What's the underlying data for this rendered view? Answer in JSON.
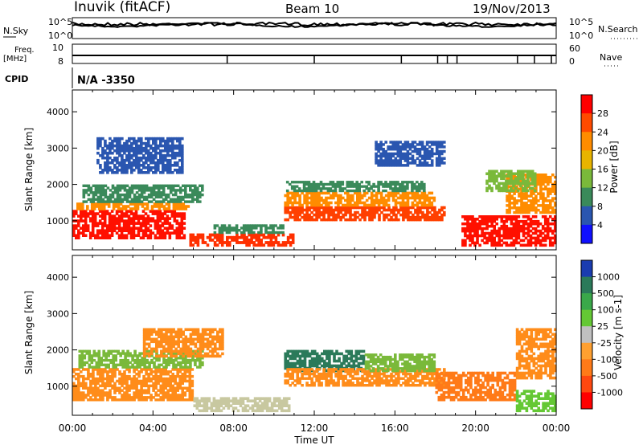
{
  "header": {
    "station": "Inuvik (fitACF)",
    "beam": "Beam 10",
    "date": "19/Nov/2013"
  },
  "noise_panel": {
    "left_label": "N.Sky",
    "right_label": "N.Search",
    "left_ticks": [
      "10^5",
      "10^0"
    ],
    "right_ticks": [
      "10^5",
      "10^0"
    ]
  },
  "freq_panel": {
    "left_label_line1": "Freq.",
    "left_label_line2": "[MHz]",
    "left_ticks": [
      "10",
      "8"
    ],
    "right_label": "Nave",
    "right_ticks": [
      "60",
      "0"
    ]
  },
  "cpid": {
    "label": "CPID",
    "value": "N/A -3350"
  },
  "chart_data": [
    {
      "type": "heatmap",
      "name": "power",
      "ylabel": "Slant Range [km]",
      "xlabel": "Time UT",
      "yticks": [
        1000,
        2000,
        3000,
        4000
      ],
      "ylim": [
        200,
        4600
      ],
      "xticks": [
        "00:00",
        "04:00",
        "08:00",
        "12:00",
        "16:00",
        "20:00",
        "00:00"
      ],
      "colorbar": {
        "label": "Power [dB]",
        "ticks": [
          "28",
          "24",
          "20",
          "16",
          "12",
          "8",
          "4"
        ],
        "colors": [
          "#ff0000",
          "#ff4a00",
          "#ff8c00",
          "#e8b400",
          "#7ab93a",
          "#3a8a5a",
          "#2a56b0",
          "#1010ff"
        ]
      },
      "bands": [
        {
          "t0": 0.0,
          "t1": 5.6,
          "r0": 500,
          "r1": 1300,
          "color": "#ff1000"
        },
        {
          "t0": 0.2,
          "t1": 5.8,
          "r0": 1300,
          "r1": 1500,
          "color": "#ff8c00"
        },
        {
          "t0": 0.5,
          "t1": 6.5,
          "r0": 1500,
          "r1": 2000,
          "color": "#3a8a5a"
        },
        {
          "t0": 1.2,
          "t1": 5.5,
          "r0": 2300,
          "r1": 3300,
          "color": "#2a56b0"
        },
        {
          "t0": 5.8,
          "t1": 11.0,
          "r0": 300,
          "r1": 650,
          "color": "#ff3000"
        },
        {
          "t0": 7.0,
          "t1": 10.5,
          "r0": 650,
          "r1": 900,
          "color": "#3a8a5a"
        },
        {
          "t0": 10.5,
          "t1": 18.5,
          "r0": 1000,
          "r1": 1400,
          "color": "#ff4000"
        },
        {
          "t0": 10.5,
          "t1": 18.0,
          "r0": 1400,
          "r1": 1800,
          "color": "#ff8c00"
        },
        {
          "t0": 10.6,
          "t1": 17.5,
          "r0": 1800,
          "r1": 2100,
          "color": "#3a8a5a"
        },
        {
          "t0": 15.0,
          "t1": 18.5,
          "r0": 2500,
          "r1": 3200,
          "color": "#2a56b0"
        },
        {
          "t0": 19.3,
          "t1": 24.0,
          "r0": 300,
          "r1": 1150,
          "color": "#ff1000"
        },
        {
          "t0": 21.5,
          "t1": 24.0,
          "r0": 1200,
          "r1": 2300,
          "color": "#ff8c00"
        },
        {
          "t0": 20.5,
          "t1": 23.0,
          "r0": 1800,
          "r1": 2400,
          "color": "#7ab93a"
        }
      ]
    },
    {
      "type": "heatmap",
      "name": "velocity",
      "ylabel": "Slant Range [km]",
      "xlabel": "Time UT",
      "yticks": [
        1000,
        2000,
        3000,
        4000
      ],
      "ylim": [
        200,
        4600
      ],
      "xticks": [
        "00:00",
        "04:00",
        "08:00",
        "12:00",
        "16:00",
        "20:00",
        "00:00"
      ],
      "colorbar": {
        "label": "Velocity [m s-1]",
        "ticks": [
          "1000",
          "500",
          "100",
          "25",
          "-25",
          "-100",
          "-500",
          "-1000"
        ],
        "colors": [
          "#1a3cb0",
          "#2b7a5a",
          "#3aa84a",
          "#64c834",
          "#c0c0c0",
          "#ffa030",
          "#ff7a18",
          "#ff4810",
          "#ff0000"
        ]
      },
      "bands": [
        {
          "t0": 0.0,
          "t1": 6.0,
          "r0": 600,
          "r1": 1500,
          "color": "#ff8c1a"
        },
        {
          "t0": 0.3,
          "t1": 6.5,
          "r0": 1500,
          "r1": 2000,
          "color": "#7ab93a"
        },
        {
          "t0": 3.5,
          "t1": 7.5,
          "r0": 1800,
          "r1": 2600,
          "color": "#ff8c1a"
        },
        {
          "t0": 6.0,
          "t1": 10.8,
          "r0": 300,
          "r1": 700,
          "color": "#c8c8a0"
        },
        {
          "t0": 10.5,
          "t1": 14.5,
          "r0": 1400,
          "r1": 2000,
          "color": "#2b7a5a"
        },
        {
          "t0": 10.5,
          "t1": 18.5,
          "r0": 1000,
          "r1": 1500,
          "color": "#ff8c1a"
        },
        {
          "t0": 14.5,
          "t1": 18.0,
          "r0": 1400,
          "r1": 1900,
          "color": "#7ab93a"
        },
        {
          "t0": 18.0,
          "t1": 22.0,
          "r0": 600,
          "r1": 1400,
          "color": "#ff7a18"
        },
        {
          "t0": 22.0,
          "t1": 24.0,
          "r0": 300,
          "r1": 900,
          "color": "#64c834"
        },
        {
          "t0": 22.0,
          "t1": 24.0,
          "r0": 1200,
          "r1": 2600,
          "color": "#ff8c1a"
        }
      ]
    }
  ]
}
